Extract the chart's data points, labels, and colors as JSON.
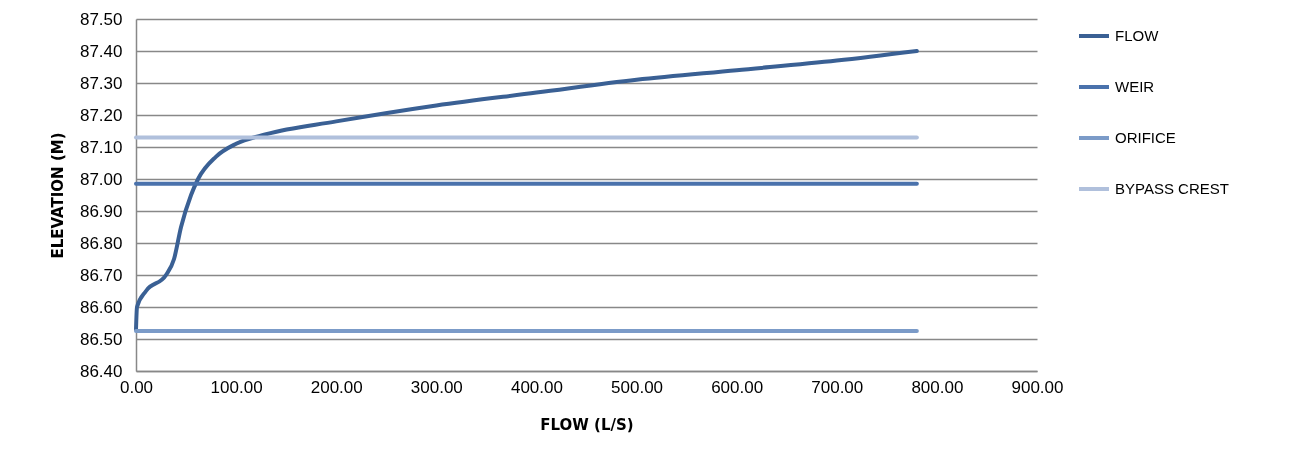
{
  "chart_data": {
    "type": "line",
    "xlabel": "FLOW (L/S)",
    "ylabel": "ELEVATION (M)",
    "series": [
      {
        "name": "FLOW",
        "color": "#3a6094",
        "x": [
          0,
          1,
          10,
          30,
          38,
          45,
          55,
          62,
          80,
          100,
          130,
          200,
          300,
          400,
          500,
          600,
          700,
          780
        ],
        "values": [
          86.53,
          86.6,
          86.65,
          86.7,
          86.75,
          86.85,
          86.95,
          87.0,
          87.07,
          87.11,
          87.14,
          87.18,
          87.23,
          87.27,
          87.31,
          87.34,
          87.37,
          87.4
        ]
      },
      {
        "name": "WEIR",
        "color": "#4a72ac",
        "x": [
          0,
          780
        ],
        "values": [
          86.985,
          86.985
        ]
      },
      {
        "name": "ORIFICE",
        "color": "#7b9bc8",
        "x": [
          0,
          780
        ],
        "values": [
          86.525,
          86.525
        ]
      },
      {
        "name": "BYPASS CREST",
        "color": "#b0c0dc",
        "x": [
          0,
          780
        ],
        "values": [
          87.13,
          87.13
        ]
      }
    ],
    "xlim": [
      0,
      900
    ],
    "ylim": [
      86.4,
      87.5
    ],
    "xticks": [
      {
        "value": 0,
        "label": "0.00"
      },
      {
        "value": 100,
        "label": "100.00"
      },
      {
        "value": 200,
        "label": "200.00"
      },
      {
        "value": 300,
        "label": "300.00"
      },
      {
        "value": 400,
        "label": "400.00"
      },
      {
        "value": 500,
        "label": "500.00"
      },
      {
        "value": 600,
        "label": "600.00"
      },
      {
        "value": 700,
        "label": "700.00"
      },
      {
        "value": 800,
        "label": "800.00"
      },
      {
        "value": 900,
        "label": "900.00"
      }
    ],
    "yticks": [
      {
        "value": 86.4,
        "label": "86.40"
      },
      {
        "value": 86.5,
        "label": "86.50"
      },
      {
        "value": 86.6,
        "label": "86.60"
      },
      {
        "value": 86.7,
        "label": "86.70"
      },
      {
        "value": 86.8,
        "label": "86.80"
      },
      {
        "value": 86.9,
        "label": "86.90"
      },
      {
        "value": 87.0,
        "label": "87.00"
      },
      {
        "value": 87.1,
        "label": "87.10"
      },
      {
        "value": 87.2,
        "label": "87.20"
      },
      {
        "value": 87.3,
        "label": "87.30"
      },
      {
        "value": 87.4,
        "label": "87.40"
      },
      {
        "value": 87.5,
        "label": "87.50"
      }
    ],
    "grid": "y",
    "legend": "right",
    "marker": "none",
    "line_style": "solid"
  }
}
